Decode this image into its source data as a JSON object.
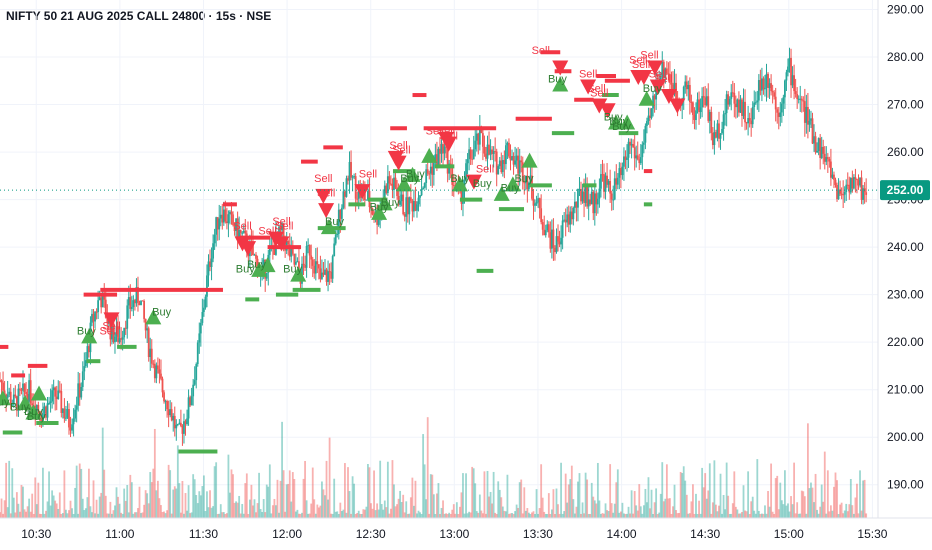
{
  "header": {
    "title": "NIFTY 50 21 AUG 2025 CALL 24800 · 15s · NSE"
  },
  "colors": {
    "buy": "#4caf50",
    "sell": "#f23645",
    "up": "#26a69a",
    "down": "#ef5350",
    "grid": "#f0f3fa",
    "axis_text": "#131722",
    "price_line": "#089981"
  },
  "chart_data": {
    "type": "candlestick",
    "title": "NIFTY 50 21 AUG 2025 CALL 24800 · 15s · NSE",
    "ylim": [
      183,
      292
    ],
    "xlim": [
      "10:17",
      "15:32"
    ],
    "y_ticks": [
      "190.00",
      "200.00",
      "210.00",
      "220.00",
      "230.00",
      "240.00",
      "250.00",
      "260.00",
      "270.00",
      "280.00",
      "290.00"
    ],
    "x_ticks": [
      {
        "time": "10:30",
        "label": "10:30"
      },
      {
        "time": "11:00",
        "label": "11:00"
      },
      {
        "time": "11:30",
        "label": "11:30"
      },
      {
        "time": "12:00",
        "label": "12:00"
      },
      {
        "time": "12:30",
        "label": "12:30"
      },
      {
        "time": "13:00",
        "label": "13:00"
      },
      {
        "time": "13:30",
        "label": "13:30"
      },
      {
        "time": "14:00",
        "label": "14:00"
      },
      {
        "time": "14:30",
        "label": "14:30"
      },
      {
        "time": "15:00",
        "label": "15:00"
      },
      {
        "time": "15:30",
        "label": "15:30"
      }
    ],
    "current_price": {
      "label": "252.00",
      "value": 252
    },
    "price_path": [
      [
        "10:17",
        212
      ],
      [
        "10:22",
        207
      ],
      [
        "10:27",
        210
      ],
      [
        "10:32",
        205
      ],
      [
        "10:37",
        209
      ],
      [
        "10:42",
        203
      ],
      [
        "10:47",
        213
      ],
      [
        "10:50",
        224
      ],
      [
        "10:53",
        230
      ],
      [
        "10:57",
        222
      ],
      [
        "11:00",
        221
      ],
      [
        "11:03",
        227
      ],
      [
        "11:07",
        230
      ],
      [
        "11:10",
        220
      ],
      [
        "11:14",
        212
      ],
      [
        "11:18",
        206
      ],
      [
        "11:21",
        200
      ],
      [
        "11:25",
        207
      ],
      [
        "11:28",
        218
      ],
      [
        "11:31",
        232
      ],
      [
        "11:33",
        240
      ],
      [
        "11:36",
        248
      ],
      [
        "11:40",
        245
      ],
      [
        "11:44",
        242
      ],
      [
        "11:48",
        238
      ],
      [
        "11:51",
        234
      ],
      [
        "11:55",
        240
      ],
      [
        "11:58",
        243
      ],
      [
        "12:02",
        237
      ],
      [
        "12:05",
        234
      ],
      [
        "12:08",
        240
      ],
      [
        "12:12",
        233
      ],
      [
        "12:16",
        235
      ],
      [
        "12:19",
        248
      ],
      [
        "12:22",
        256
      ],
      [
        "12:25",
        252
      ],
      [
        "12:29",
        250
      ],
      [
        "12:32",
        246
      ],
      [
        "12:36",
        254
      ],
      [
        "12:39",
        252
      ],
      [
        "12:42",
        248
      ],
      [
        "12:46",
        250
      ],
      [
        "12:49",
        254
      ],
      [
        "12:52",
        257
      ],
      [
        "12:56",
        261
      ],
      [
        "12:59",
        255
      ],
      [
        "13:02",
        250
      ],
      [
        "13:05",
        258
      ],
      [
        "13:09",
        263
      ],
      [
        "13:12",
        260
      ],
      [
        "13:16",
        257
      ],
      [
        "13:19",
        261
      ],
      [
        "13:22",
        258
      ],
      [
        "13:26",
        255
      ],
      [
        "13:29",
        250
      ],
      [
        "13:32",
        245
      ],
      [
        "13:36",
        240
      ],
      [
        "13:39",
        244
      ],
      [
        "13:43",
        248
      ],
      [
        "13:46",
        252
      ],
      [
        "13:50",
        249
      ],
      [
        "13:53",
        255
      ],
      [
        "13:56",
        251
      ],
      [
        "14:00",
        255
      ],
      [
        "14:03",
        262
      ],
      [
        "14:06",
        258
      ],
      [
        "14:10",
        266
      ],
      [
        "14:13",
        276
      ],
      [
        "14:16",
        278
      ],
      [
        "14:20",
        271
      ],
      [
        "14:23",
        274
      ],
      [
        "14:26",
        268
      ],
      [
        "14:30",
        272
      ],
      [
        "14:33",
        262
      ],
      [
        "14:36",
        267
      ],
      [
        "14:39",
        272
      ],
      [
        "14:43",
        270
      ],
      [
        "14:46",
        265
      ],
      [
        "14:49",
        274
      ],
      [
        "14:53",
        276
      ],
      [
        "14:56",
        268
      ],
      [
        "15:00",
        278
      ],
      [
        "15:03",
        272
      ],
      [
        "15:06",
        268
      ],
      [
        "15:09",
        263
      ],
      [
        "15:12",
        260
      ],
      [
        "15:15",
        256
      ],
      [
        "15:18",
        251
      ],
      [
        "15:22",
        254
      ],
      [
        "15:26",
        252
      ],
      [
        "15:28",
        252
      ]
    ],
    "levels": [
      {
        "type": "sell",
        "from": "10:17",
        "to": "10:20",
        "y": 219
      },
      {
        "type": "sell",
        "from": "10:21",
        "to": "10:26",
        "y": 213
      },
      {
        "type": "sell",
        "from": "10:27",
        "to": "10:34",
        "y": 215
      },
      {
        "type": "buy",
        "from": "10:18",
        "to": "10:25",
        "y": 201
      },
      {
        "type": "buy",
        "from": "10:30",
        "to": "10:38",
        "y": 203
      },
      {
        "type": "sell",
        "from": "10:47",
        "to": "10:59",
        "y": 230
      },
      {
        "type": "sell",
        "from": "10:53",
        "to": "11:37",
        "y": 231
      },
      {
        "type": "buy",
        "from": "10:48",
        "to": "10:53",
        "y": 216
      },
      {
        "type": "buy",
        "from": "10:59",
        "to": "11:06",
        "y": 219
      },
      {
        "type": "buy",
        "from": "11:21",
        "to": "11:35",
        "y": 197
      },
      {
        "type": "sell",
        "from": "11:37",
        "to": "11:42",
        "y": 249
      },
      {
        "type": "sell",
        "from": "11:43",
        "to": "11:54",
        "y": 242
      },
      {
        "type": "sell",
        "from": "11:53",
        "to": "12:05",
        "y": 240
      },
      {
        "type": "buy",
        "from": "11:45",
        "to": "11:50",
        "y": 229
      },
      {
        "type": "buy",
        "from": "11:56",
        "to": "12:04",
        "y": 230
      },
      {
        "type": "buy",
        "from": "12:02",
        "to": "12:12",
        "y": 231
      },
      {
        "type": "sell",
        "from": "12:05",
        "to": "12:11",
        "y": 258
      },
      {
        "type": "sell",
        "from": "12:13",
        "to": "12:20",
        "y": 261
      },
      {
        "type": "buy",
        "from": "12:11",
        "to": "12:21",
        "y": 244
      },
      {
        "type": "buy",
        "from": "12:22",
        "to": "12:28",
        "y": 249
      },
      {
        "type": "buy",
        "from": "12:29",
        "to": "12:36",
        "y": 250
      },
      {
        "type": "buy",
        "from": "12:38",
        "to": "12:46",
        "y": 256
      },
      {
        "type": "sell",
        "from": "12:37",
        "to": "12:43",
        "y": 265
      },
      {
        "type": "sell",
        "from": "12:45",
        "to": "12:50",
        "y": 272
      },
      {
        "type": "sell",
        "from": "12:49",
        "to": "13:15",
        "y": 265
      },
      {
        "type": "buy",
        "from": "12:53",
        "to": "13:00",
        "y": 257
      },
      {
        "type": "buy",
        "from": "13:02",
        "to": "13:10",
        "y": 250
      },
      {
        "type": "buy",
        "from": "13:08",
        "to": "13:14",
        "y": 235
      },
      {
        "type": "buy",
        "from": "13:16",
        "to": "13:25",
        "y": 248
      },
      {
        "type": "sell",
        "from": "13:22",
        "to": "13:35",
        "y": 267
      },
      {
        "type": "buy",
        "from": "13:27",
        "to": "13:35",
        "y": 253
      },
      {
        "type": "sell",
        "from": "13:31",
        "to": "13:38",
        "y": 281
      },
      {
        "type": "sell",
        "from": "13:36",
        "to": "13:42",
        "y": 277
      },
      {
        "type": "buy",
        "from": "13:35",
        "to": "13:43",
        "y": 264
      },
      {
        "type": "sell",
        "from": "13:43",
        "to": "13:50",
        "y": 271
      },
      {
        "type": "buy",
        "from": "13:46",
        "to": "13:51",
        "y": 253
      },
      {
        "type": "sell",
        "from": "13:51",
        "to": "13:58",
        "y": 276
      },
      {
        "type": "sell",
        "from": "13:54",
        "to": "14:03",
        "y": 275
      },
      {
        "type": "buy",
        "from": "13:53",
        "to": "13:59",
        "y": 272
      },
      {
        "type": "buy",
        "from": "13:59",
        "to": "14:06",
        "y": 264
      },
      {
        "type": "sell",
        "from": "14:08",
        "to": "14:11",
        "y": 256
      },
      {
        "type": "buy",
        "from": "14:08",
        "to": "14:11",
        "y": 249
      }
    ],
    "signals": [
      {
        "type": "buy",
        "time": "10:18",
        "y": 208
      },
      {
        "type": "buy",
        "time": "10:26",
        "y": 207
      },
      {
        "type": "buy",
        "time": "10:29",
        "y": 205
      },
      {
        "type": "buy",
        "time": "10:31",
        "y": 209
      },
      {
        "type": "buy",
        "time": "10:49",
        "y": 221
      },
      {
        "type": "sell",
        "time": "10:57",
        "y": 225
      },
      {
        "type": "buy",
        "time": "11:12",
        "y": 225
      },
      {
        "type": "sell",
        "time": "11:44",
        "y": 241
      },
      {
        "type": "sell",
        "time": "11:46",
        "y": 240
      },
      {
        "type": "buy",
        "time": "11:50",
        "y": 235
      },
      {
        "type": "buy",
        "time": "11:53",
        "y": 236
      },
      {
        "type": "sell",
        "time": "11:56",
        "y": 242
      },
      {
        "type": "sell",
        "time": "11:58",
        "y": 241
      },
      {
        "type": "buy",
        "time": "12:04",
        "y": 234
      },
      {
        "type": "sell",
        "time": "12:13",
        "y": 251
      },
      {
        "type": "sell",
        "time": "12:14",
        "y": 248
      },
      {
        "type": "buy",
        "time": "12:15",
        "y": 244
      },
      {
        "type": "sell",
        "time": "12:27",
        "y": 252
      },
      {
        "type": "buy",
        "time": "12:33",
        "y": 247
      },
      {
        "type": "buy",
        "time": "12:35",
        "y": 249
      },
      {
        "type": "sell",
        "time": "12:39",
        "y": 259
      },
      {
        "type": "sell",
        "time": "12:40",
        "y": 258
      },
      {
        "type": "buy",
        "time": "12:42",
        "y": 253
      },
      {
        "type": "buy",
        "time": "12:45",
        "y": 255
      },
      {
        "type": "buy",
        "time": "12:51",
        "y": 259
      },
      {
        "type": "sell",
        "time": "12:57",
        "y": 263
      },
      {
        "type": "sell",
        "time": "12:58",
        "y": 262
      },
      {
        "type": "buy",
        "time": "13:02",
        "y": 253
      },
      {
        "type": "sell",
        "time": "13:07",
        "y": 254
      },
      {
        "type": "buy",
        "time": "13:17",
        "y": 251
      },
      {
        "type": "buy",
        "time": "13:21",
        "y": 253
      },
      {
        "type": "buy",
        "time": "13:27",
        "y": 258
      },
      {
        "type": "sell",
        "time": "13:38",
        "y": 278
      },
      {
        "type": "buy",
        "time": "13:38",
        "y": 274
      },
      {
        "type": "sell",
        "time": "13:48",
        "y": 274
      },
      {
        "type": "sell",
        "time": "13:52",
        "y": 270
      },
      {
        "type": "sell",
        "time": "13:55",
        "y": 269
      },
      {
        "type": "buy",
        "time": "13:58",
        "y": 266
      },
      {
        "type": "buy",
        "time": "14:02",
        "y": 266
      },
      {
        "type": "sell",
        "time": "14:06",
        "y": 276
      },
      {
        "type": "sell",
        "time": "14:08",
        "y": 276
      },
      {
        "type": "buy",
        "time": "14:09",
        "y": 271
      },
      {
        "type": "sell",
        "time": "14:12",
        "y": 278
      },
      {
        "type": "sell",
        "time": "14:13",
        "y": 274
      },
      {
        "type": "sell",
        "time": "14:17",
        "y": 272
      },
      {
        "type": "sell",
        "time": "14:20",
        "y": 270
      }
    ],
    "signal_labels": [
      {
        "text": "Buy",
        "time": "10:17",
        "y": 207.5,
        "type": "buy"
      },
      {
        "text": "Buy",
        "time": "10:24",
        "y": 206.5,
        "type": "buy"
      },
      {
        "text": "Buy",
        "time": "10:29",
        "y": 205.5,
        "type": "buy"
      },
      {
        "text": "Buy",
        "time": "10:30",
        "y": 204.5,
        "type": "buy"
      },
      {
        "text": "Buy",
        "time": "10:48",
        "y": 222.5,
        "type": "buy"
      },
      {
        "text": "Sell",
        "time": "10:56",
        "y": 222.5,
        "type": "sell"
      },
      {
        "text": "Sell",
        "time": "10:57",
        "y": 223.5,
        "type": "sell"
      },
      {
        "text": "Buy",
        "time": "11:15",
        "y": 226.5,
        "type": "buy"
      },
      {
        "text": "Sell",
        "time": "11:44",
        "y": 244.5,
        "type": "sell"
      },
      {
        "text": "Buy",
        "time": "11:45",
        "y": 235.5,
        "type": "buy"
      },
      {
        "text": "Buy",
        "time": "11:49",
        "y": 236.5,
        "type": "buy"
      },
      {
        "text": "Sell",
        "time": "11:53",
        "y": 243.5,
        "type": "sell"
      },
      {
        "text": "Sell",
        "time": "11:58",
        "y": 245.5,
        "type": "sell"
      },
      {
        "text": "Sell",
        "time": "11:59",
        "y": 244.5,
        "type": "sell"
      },
      {
        "text": "Buy",
        "time": "12:02",
        "y": 235.5,
        "type": "buy"
      },
      {
        "text": "Sell",
        "time": "12:13",
        "y": 254.5,
        "type": "sell"
      },
      {
        "text": "Sell",
        "time": "12:14",
        "y": 251.5,
        "type": "sell"
      },
      {
        "text": "Buy",
        "time": "12:17",
        "y": 245.5,
        "type": "buy"
      },
      {
        "text": "Sell",
        "time": "12:29",
        "y": 255.5,
        "type": "sell"
      },
      {
        "text": "Buy",
        "time": "12:33",
        "y": 248.5,
        "type": "buy"
      },
      {
        "text": "Buy",
        "time": "12:37",
        "y": 249.5,
        "type": "buy"
      },
      {
        "text": "Sell",
        "time": "12:40",
        "y": 261.5,
        "type": "sell"
      },
      {
        "text": "Sell",
        "time": "12:41",
        "y": 260.5,
        "type": "sell"
      },
      {
        "text": "Buy",
        "time": "12:44",
        "y": 254.5,
        "type": "buy"
      },
      {
        "text": "Buy",
        "time": "12:46",
        "y": 255.5,
        "type": "buy"
      },
      {
        "text": "Sell",
        "time": "12:53",
        "y": 264.5,
        "type": "sell"
      },
      {
        "text": "Sell",
        "time": "12:57",
        "y": 264.5,
        "type": "sell"
      },
      {
        "text": "Sell",
        "time": "12:58",
        "y": 263.5,
        "type": "sell"
      },
      {
        "text": "Buy",
        "time": "13:02",
        "y": 254.5,
        "type": "buy"
      },
      {
        "text": "Buy",
        "time": "13:10",
        "y": 253.5,
        "type": "buy"
      },
      {
        "text": "Sell",
        "time": "13:11",
        "y": 256.5,
        "type": "sell"
      },
      {
        "text": "Buy",
        "time": "13:20",
        "y": 252.5,
        "type": "buy"
      },
      {
        "text": "Buy",
        "time": "13:25",
        "y": 254.5,
        "type": "buy"
      },
      {
        "text": "Sell",
        "time": "13:31",
        "y": 281.5,
        "type": "sell"
      },
      {
        "text": "Buy",
        "time": "13:37",
        "y": 275.5,
        "type": "buy"
      },
      {
        "text": "Sell",
        "time": "13:48",
        "y": 276.5,
        "type": "sell"
      },
      {
        "text": "Sell",
        "time": "13:51",
        "y": 273.5,
        "type": "sell"
      },
      {
        "text": "Sell",
        "time": "13:52",
        "y": 272.5,
        "type": "sell"
      },
      {
        "text": "Buy",
        "time": "13:57",
        "y": 267.5,
        "type": "buy"
      },
      {
        "text": "Buy",
        "time": "13:59",
        "y": 266.5,
        "type": "buy"
      },
      {
        "text": "Buy",
        "time": "14:00",
        "y": 265.5,
        "type": "buy"
      },
      {
        "text": "Sell",
        "time": "14:06",
        "y": 279.5,
        "type": "sell"
      },
      {
        "text": "Sell",
        "time": "14:07",
        "y": 278.5,
        "type": "sell"
      },
      {
        "text": "Sell",
        "time": "14:10",
        "y": 280.5,
        "type": "sell"
      },
      {
        "text": "Buy",
        "time": "14:11",
        "y": 273.5,
        "type": "buy"
      },
      {
        "text": "Sell",
        "time": "14:13",
        "y": 276.5,
        "type": "sell"
      },
      {
        "text": "Sell",
        "time": "14:15",
        "y": 275.5,
        "type": "sell"
      }
    ]
  }
}
